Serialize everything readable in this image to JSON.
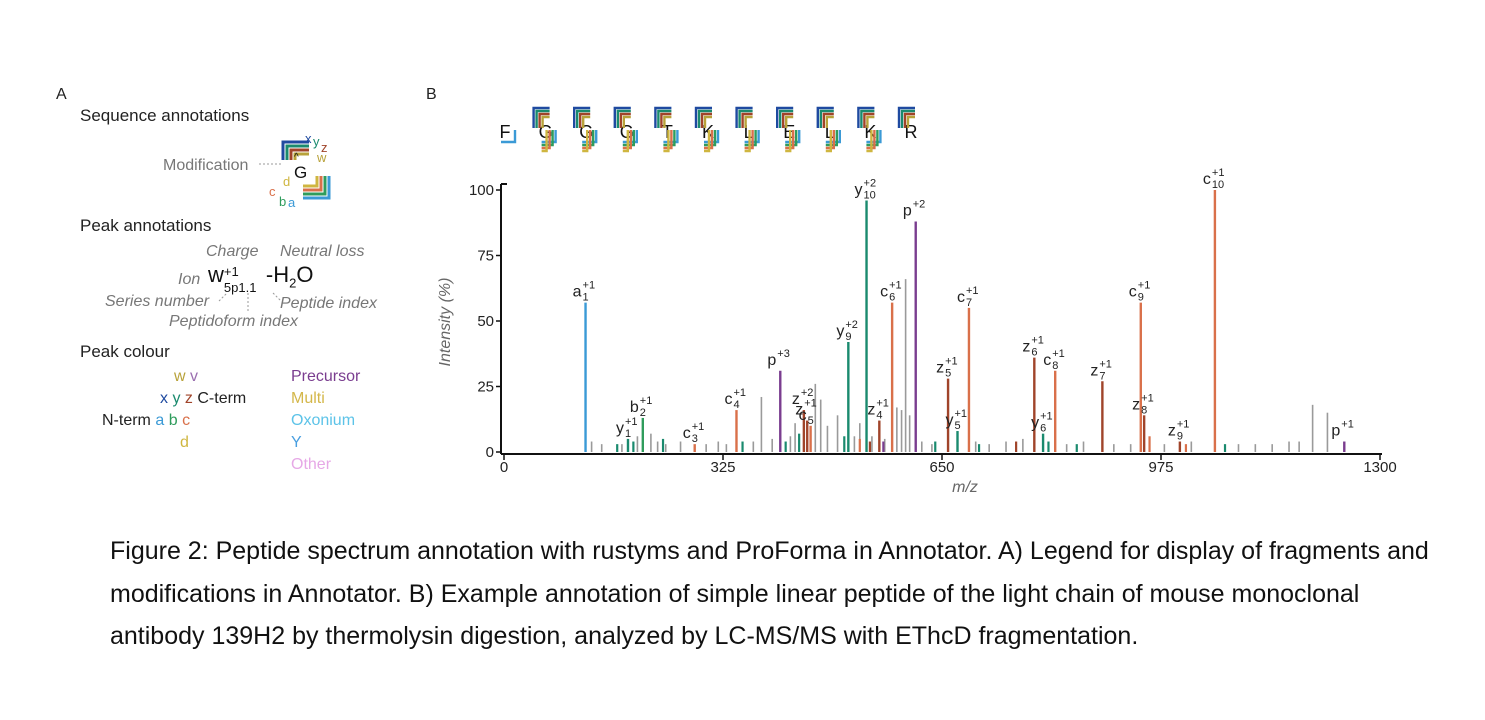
{
  "panelA": {
    "label": "A",
    "sequence_title": "Sequence annotations",
    "modification_label": "Modification",
    "residue": "G",
    "seq_letters": {
      "x": "x",
      "y": "y",
      "z": "z",
      "w": "w",
      "d": "d",
      "c": "c",
      "b": "b",
      "a": "a"
    },
    "peak_title": "Peak annotations",
    "charge_label": "Charge",
    "neutral_loss_label": "Neutral loss",
    "ion_label": "Ion",
    "ion_main": "w",
    "ion_sup": "+1",
    "ion_sub": "5p1.1",
    "ion_loss": "-H",
    "ion_loss_sub": "2",
    "ion_loss_end": "O",
    "series_number_label": "Series number",
    "peptide_index_label": "Peptide index",
    "peptidoform_index_label": "Peptidoform index",
    "colour_title": "Peak colour",
    "colour_rows": {
      "w": "w",
      "v": "v",
      "x": "x",
      "y": "y",
      "z": "z",
      "cterm": "C-term",
      "nterm": "N-term",
      "a": "a",
      "b": "b",
      "c": "c",
      "d": "d"
    },
    "categories": [
      "Precursor",
      "Multi",
      "Oxonium",
      "Y",
      "Other"
    ],
    "colors": {
      "w": "#b8a23a",
      "v": "#9b6fb0",
      "x": "#1f4aa0",
      "y": "#1a8a6e",
      "z": "#a0442a",
      "a": "#3b9ad6",
      "b": "#2f9c5c",
      "c": "#d9704a",
      "d": "#cfb640",
      "precursor": "#7a3d8f",
      "multi": "#d4b74a",
      "oxonium": "#5cc3e8",
      "Y": "#4a9fe0",
      "other": "#e6a8e6"
    }
  },
  "panelB": {
    "label": "B",
    "sequence": [
      "F",
      "G",
      "G",
      "G",
      "T",
      "K",
      "L",
      "E",
      "L",
      "K",
      "R"
    ]
  },
  "chart_data": {
    "type": "bar",
    "xlabel": "m/z",
    "ylabel": "Intensity (%)",
    "xlim": [
      0,
      1300
    ],
    "ylim": [
      0,
      100
    ],
    "xticks": [
      0,
      325,
      650,
      975,
      1300
    ],
    "yticks": [
      0,
      25,
      50,
      75,
      100
    ],
    "annotated_peaks": [
      {
        "x": 121,
        "y": 57,
        "ion": "a",
        "sup": "+1",
        "sub": "1",
        "color": "#3b9ad6"
      },
      {
        "x": 184,
        "y": 5,
        "ion": "y",
        "sup": "+1",
        "sub": "1",
        "color": "#1a8a6e"
      },
      {
        "x": 206,
        "y": 13,
        "ion": "b",
        "sup": "+1",
        "sub": "2",
        "color": "#2f9c5c"
      },
      {
        "x": 283,
        "y": 3,
        "ion": "c",
        "sup": "+1",
        "sub": "3",
        "color": "#d9704a"
      },
      {
        "x": 345,
        "y": 16,
        "ion": "c",
        "sup": "+1",
        "sub": "4",
        "color": "#d9704a"
      },
      {
        "x": 410,
        "y": 31,
        "ion": "p",
        "sup": "+3",
        "sub": "",
        "color": "#7a3d8f"
      },
      {
        "x": 445,
        "y": 16,
        "ion": "z",
        "sup": "+2",
        "sub": "",
        "color": "#a0442a"
      },
      {
        "x": 450,
        "y": 12,
        "ion": "z",
        "sup": "+1",
        "sub": "",
        "color": "#a0442a"
      },
      {
        "x": 455,
        "y": 10,
        "ion": "c",
        "sup": "",
        "sub": "5",
        "color": "#d9704a"
      },
      {
        "x": 511,
        "y": 42,
        "ion": "y",
        "sup": "+2",
        "sub": "9",
        "color": "#1a8a6e"
      },
      {
        "x": 538,
        "y": 96,
        "ion": "y",
        "sup": "+2",
        "sub": "10",
        "color": "#1a8a6e"
      },
      {
        "x": 557,
        "y": 12,
        "ion": "z",
        "sup": "+1",
        "sub": "4",
        "color": "#a0442a"
      },
      {
        "x": 576,
        "y": 57,
        "ion": "c",
        "sup": "+1",
        "sub": "6",
        "color": "#d9704a"
      },
      {
        "x": 611,
        "y": 88,
        "ion": "p",
        "sup": "+2",
        "sub": "",
        "color": "#7a3d8f"
      },
      {
        "x": 659,
        "y": 28,
        "ion": "z",
        "sup": "+1",
        "sub": "5",
        "color": "#a0442a"
      },
      {
        "x": 673,
        "y": 8,
        "ion": "y",
        "sup": "+1",
        "sub": "5",
        "color": "#1a8a6e"
      },
      {
        "x": 690,
        "y": 55,
        "ion": "c",
        "sup": "+1",
        "sub": "7",
        "color": "#d9704a"
      },
      {
        "x": 787,
        "y": 36,
        "ion": "z",
        "sup": "+1",
        "sub": "6",
        "color": "#a0442a"
      },
      {
        "x": 800,
        "y": 7,
        "ion": "y",
        "sup": "+1",
        "sub": "6",
        "color": "#1a8a6e"
      },
      {
        "x": 818,
        "y": 31,
        "ion": "c",
        "sup": "+1",
        "sub": "8",
        "color": "#d9704a"
      },
      {
        "x": 888,
        "y": 27,
        "ion": "z",
        "sup": "+1",
        "sub": "7",
        "color": "#a0442a"
      },
      {
        "x": 945,
        "y": 57,
        "ion": "c",
        "sup": "+1",
        "sub": "9",
        "color": "#d9704a"
      },
      {
        "x": 950,
        "y": 14,
        "ion": "z",
        "sup": "+1",
        "sub": "8",
        "color": "#a0442a"
      },
      {
        "x": 1003,
        "y": 4,
        "ion": "z",
        "sup": "+1",
        "sub": "9",
        "color": "#a0442a"
      },
      {
        "x": 1055,
        "y": 100,
        "ion": "c",
        "sup": "+1",
        "sub": "10",
        "color": "#d9704a"
      },
      {
        "x": 1247,
        "y": 4,
        "ion": "p",
        "sup": "+1",
        "sub": "",
        "color": "#7a3d8f"
      }
    ],
    "unannotated_peaks": [
      {
        "x": 130,
        "y": 4
      },
      {
        "x": 145,
        "y": 3
      },
      {
        "x": 175,
        "y": 3
      },
      {
        "x": 198,
        "y": 6
      },
      {
        "x": 218,
        "y": 7
      },
      {
        "x": 228,
        "y": 4
      },
      {
        "x": 240,
        "y": 3
      },
      {
        "x": 262,
        "y": 4
      },
      {
        "x": 300,
        "y": 3
      },
      {
        "x": 318,
        "y": 4
      },
      {
        "x": 330,
        "y": 3
      },
      {
        "x": 370,
        "y": 4
      },
      {
        "x": 382,
        "y": 21
      },
      {
        "x": 398,
        "y": 5
      },
      {
        "x": 425,
        "y": 6
      },
      {
        "x": 432,
        "y": 11
      },
      {
        "x": 462,
        "y": 26
      },
      {
        "x": 470,
        "y": 20
      },
      {
        "x": 480,
        "y": 10
      },
      {
        "x": 495,
        "y": 14
      },
      {
        "x": 520,
        "y": 6
      },
      {
        "x": 528,
        "y": 11
      },
      {
        "x": 546,
        "y": 6
      },
      {
        "x": 565,
        "y": 5
      },
      {
        "x": 583,
        "y": 17
      },
      {
        "x": 590,
        "y": 16
      },
      {
        "x": 596,
        "y": 66
      },
      {
        "x": 602,
        "y": 14
      },
      {
        "x": 620,
        "y": 4
      },
      {
        "x": 635,
        "y": 3
      },
      {
        "x": 700,
        "y": 4
      },
      {
        "x": 720,
        "y": 3
      },
      {
        "x": 745,
        "y": 4
      },
      {
        "x": 770,
        "y": 5
      },
      {
        "x": 835,
        "y": 3
      },
      {
        "x": 860,
        "y": 4
      },
      {
        "x": 905,
        "y": 3
      },
      {
        "x": 930,
        "y": 3
      },
      {
        "x": 980,
        "y": 3
      },
      {
        "x": 1020,
        "y": 4
      },
      {
        "x": 1090,
        "y": 3
      },
      {
        "x": 1115,
        "y": 3
      },
      {
        "x": 1140,
        "y": 3
      },
      {
        "x": 1165,
        "y": 4
      },
      {
        "x": 1180,
        "y": 4
      },
      {
        "x": 1200,
        "y": 18
      },
      {
        "x": 1222,
        "y": 15
      }
    ],
    "colored_minor_peaks": [
      {
        "x": 168,
        "y": 3,
        "color": "#1a8a6e"
      },
      {
        "x": 192,
        "y": 4,
        "color": "#1a8a6e"
      },
      {
        "x": 236,
        "y": 5,
        "color": "#1a8a6e"
      },
      {
        "x": 354,
        "y": 4,
        "color": "#1a8a6e"
      },
      {
        "x": 418,
        "y": 4,
        "color": "#1a8a6e"
      },
      {
        "x": 438,
        "y": 7,
        "color": "#1a8a6e"
      },
      {
        "x": 505,
        "y": 6,
        "color": "#1a8a6e"
      },
      {
        "x": 528,
        "y": 5,
        "color": "#d9704a"
      },
      {
        "x": 543,
        "y": 4,
        "color": "#a0442a"
      },
      {
        "x": 563,
        "y": 4,
        "color": "#7a3d8f"
      },
      {
        "x": 640,
        "y": 4,
        "color": "#1a8a6e"
      },
      {
        "x": 705,
        "y": 3,
        "color": "#1a8a6e"
      },
      {
        "x": 760,
        "y": 4,
        "color": "#a0442a"
      },
      {
        "x": 808,
        "y": 4,
        "color": "#1a8a6e"
      },
      {
        "x": 850,
        "y": 3,
        "color": "#1a8a6e"
      },
      {
        "x": 958,
        "y": 6,
        "color": "#d9704a"
      },
      {
        "x": 1012,
        "y": 3,
        "color": "#d9704a"
      },
      {
        "x": 1070,
        "y": 3,
        "color": "#1a8a6e"
      }
    ]
  },
  "caption": "Figure 2: Peptide spectrum annotation with rustyms and ProForma in Annotator. A) Legend for display of fragments and modifications in Annotator. B) Example annotation of simple linear peptide of the light chain of mouse monoclonal antibody 139H2 by thermolysin digestion, analyzed by LC-MS/MS with EThcD fragmentation."
}
